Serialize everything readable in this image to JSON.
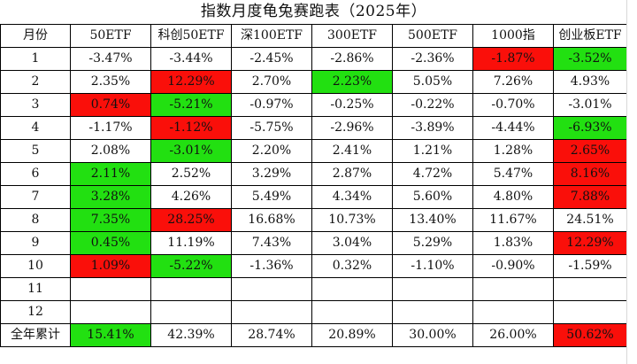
{
  "title": "指数月度龟兔赛跑表（2025年）",
  "headers": [
    "月份",
    "50ETF",
    "科创50ETF",
    "深100ETF",
    "300ETF",
    "500ETF",
    "1000指",
    "创业板ETF"
  ],
  "colors": {
    "winner": "#22e011",
    "loser": "#fa0f0a",
    "border": "#000000"
  },
  "rows": [
    {
      "month": "1",
      "cells": [
        {
          "v": "-3.47%",
          "h": ""
        },
        {
          "v": "-3.44%",
          "h": ""
        },
        {
          "v": "-2.45%",
          "h": ""
        },
        {
          "v": "-2.86%",
          "h": ""
        },
        {
          "v": "-2.36%",
          "h": ""
        },
        {
          "v": "-1.87%",
          "h": "r"
        },
        {
          "v": "-3.52%",
          "h": "g"
        }
      ]
    },
    {
      "month": "2",
      "cells": [
        {
          "v": "2.35%",
          "h": ""
        },
        {
          "v": "12.29%",
          "h": "r"
        },
        {
          "v": "2.70%",
          "h": ""
        },
        {
          "v": "2.23%",
          "h": "g"
        },
        {
          "v": "5.05%",
          "h": ""
        },
        {
          "v": "7.26%",
          "h": ""
        },
        {
          "v": "4.93%",
          "h": ""
        }
      ]
    },
    {
      "month": "3",
      "cells": [
        {
          "v": "0.74%",
          "h": "r"
        },
        {
          "v": "-5.21%",
          "h": "g"
        },
        {
          "v": "-0.97%",
          "h": ""
        },
        {
          "v": "-0.25%",
          "h": ""
        },
        {
          "v": "-0.22%",
          "h": ""
        },
        {
          "v": "-0.70%",
          "h": ""
        },
        {
          "v": "-3.01%",
          "h": ""
        }
      ]
    },
    {
      "month": "4",
      "cells": [
        {
          "v": "-1.17%",
          "h": ""
        },
        {
          "v": "-1.12%",
          "h": "r"
        },
        {
          "v": "-5.75%",
          "h": ""
        },
        {
          "v": "-2.96%",
          "h": ""
        },
        {
          "v": "-3.89%",
          "h": ""
        },
        {
          "v": "-4.44%",
          "h": ""
        },
        {
          "v": "-6.93%",
          "h": "g"
        }
      ]
    },
    {
      "month": "5",
      "cells": [
        {
          "v": "2.08%",
          "h": ""
        },
        {
          "v": "-3.01%",
          "h": "g"
        },
        {
          "v": "2.20%",
          "h": ""
        },
        {
          "v": "2.41%",
          "h": ""
        },
        {
          "v": "1.21%",
          "h": ""
        },
        {
          "v": "1.28%",
          "h": ""
        },
        {
          "v": "2.65%",
          "h": "r"
        }
      ]
    },
    {
      "month": "6",
      "cells": [
        {
          "v": "2.11%",
          "h": "g"
        },
        {
          "v": "2.52%",
          "h": ""
        },
        {
          "v": "3.29%",
          "h": ""
        },
        {
          "v": "2.87%",
          "h": ""
        },
        {
          "v": "4.72%",
          "h": ""
        },
        {
          "v": "5.47%",
          "h": ""
        },
        {
          "v": "8.16%",
          "h": "r"
        }
      ]
    },
    {
      "month": "7",
      "cells": [
        {
          "v": "3.28%",
          "h": "g"
        },
        {
          "v": "4.26%",
          "h": ""
        },
        {
          "v": "5.49%",
          "h": ""
        },
        {
          "v": "4.34%",
          "h": ""
        },
        {
          "v": "5.60%",
          "h": ""
        },
        {
          "v": "4.80%",
          "h": ""
        },
        {
          "v": "7.88%",
          "h": "r"
        }
      ]
    },
    {
      "month": "8",
      "cells": [
        {
          "v": "7.35%",
          "h": "g"
        },
        {
          "v": "28.25%",
          "h": "r"
        },
        {
          "v": "16.68%",
          "h": ""
        },
        {
          "v": "10.73%",
          "h": ""
        },
        {
          "v": "13.40%",
          "h": ""
        },
        {
          "v": "11.67%",
          "h": ""
        },
        {
          "v": "24.51%",
          "h": ""
        }
      ]
    },
    {
      "month": "9",
      "cells": [
        {
          "v": "0.45%",
          "h": "g"
        },
        {
          "v": "11.19%",
          "h": ""
        },
        {
          "v": "7.43%",
          "h": ""
        },
        {
          "v": "3.04%",
          "h": ""
        },
        {
          "v": "5.29%",
          "h": ""
        },
        {
          "v": "1.83%",
          "h": ""
        },
        {
          "v": "12.29%",
          "h": "r"
        }
      ]
    },
    {
      "month": "10",
      "cells": [
        {
          "v": "1.09%",
          "h": "r"
        },
        {
          "v": "-5.22%",
          "h": "g"
        },
        {
          "v": "-1.36%",
          "h": ""
        },
        {
          "v": "0.32%",
          "h": ""
        },
        {
          "v": "-1.10%",
          "h": ""
        },
        {
          "v": "-0.90%",
          "h": ""
        },
        {
          "v": "-1.59%",
          "h": ""
        }
      ]
    },
    {
      "month": "11",
      "cells": [
        {
          "v": "",
          "h": ""
        },
        {
          "v": "",
          "h": ""
        },
        {
          "v": "",
          "h": ""
        },
        {
          "v": "",
          "h": ""
        },
        {
          "v": "",
          "h": ""
        },
        {
          "v": "",
          "h": ""
        },
        {
          "v": "",
          "h": ""
        }
      ]
    },
    {
      "month": "12",
      "cells": [
        {
          "v": "",
          "h": ""
        },
        {
          "v": "",
          "h": ""
        },
        {
          "v": "",
          "h": ""
        },
        {
          "v": "",
          "h": ""
        },
        {
          "v": "",
          "h": ""
        },
        {
          "v": "",
          "h": ""
        },
        {
          "v": "",
          "h": ""
        }
      ]
    },
    {
      "month": "全年累计",
      "cells": [
        {
          "v": "15.41%",
          "h": "g"
        },
        {
          "v": "42.39%",
          "h": ""
        },
        {
          "v": "28.74%",
          "h": ""
        },
        {
          "v": "20.89%",
          "h": ""
        },
        {
          "v": "30.00%",
          "h": ""
        },
        {
          "v": "26.00%",
          "h": ""
        },
        {
          "v": "50.62%",
          "h": "r"
        }
      ]
    }
  ]
}
